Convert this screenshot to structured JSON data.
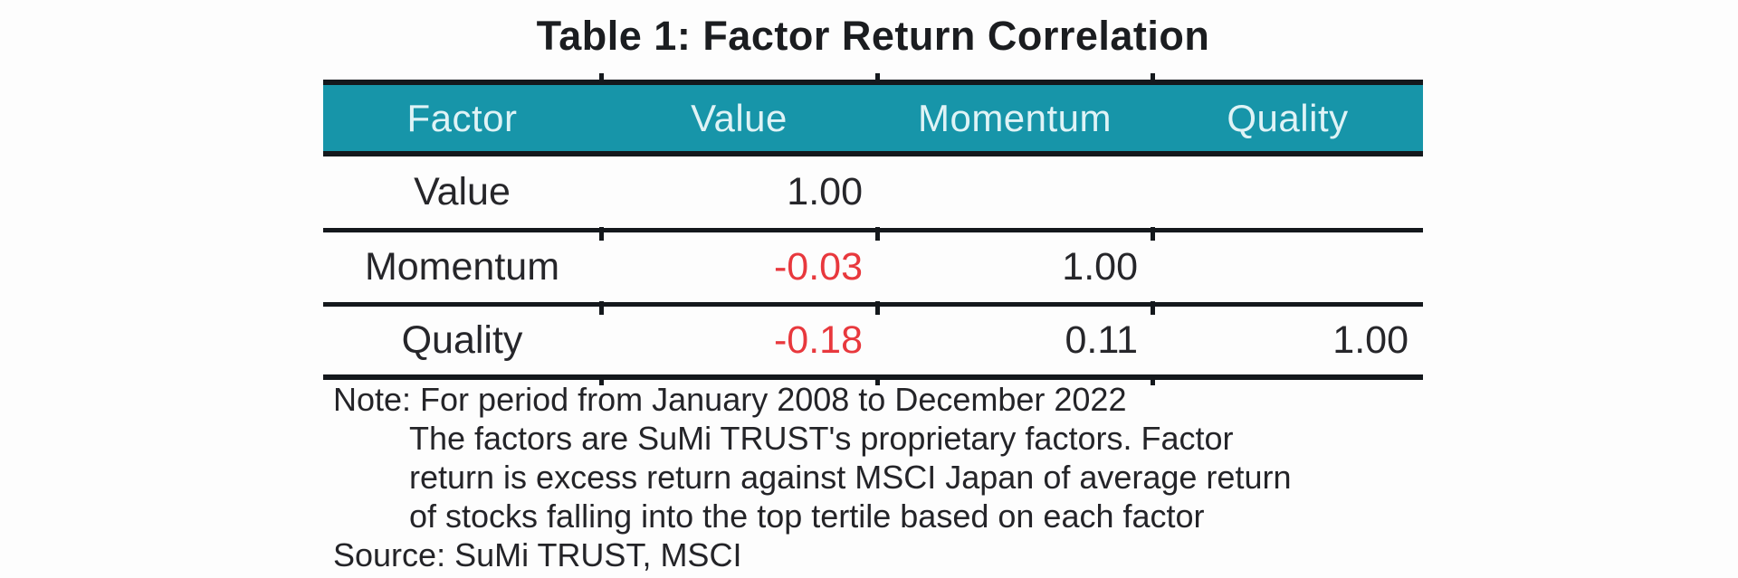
{
  "title": "Table 1: Factor Return Correlation",
  "table": {
    "header": [
      "Factor",
      "Value",
      "Momentum",
      "Quality"
    ],
    "rows": [
      {
        "label": "Value",
        "cells": [
          "1.00",
          "",
          ""
        ]
      },
      {
        "label": "Momentum",
        "cells": [
          "-0.03",
          "1.00",
          ""
        ]
      },
      {
        "label": "Quality",
        "cells": [
          "-0.18",
          "0.11",
          "1.00"
        ]
      }
    ]
  },
  "notes": {
    "lines": [
      "Note: For period from January 2008 to December 2022",
      "The factors are SuMi TRUST's proprietary factors. Factor",
      "return is excess return against MSCI Japan of average return",
      "of stocks falling into the top tertile based on each factor"
    ],
    "source": "Source: SuMi TRUST, MSCI"
  },
  "colors": {
    "header_bg": "#1795a9",
    "header_text": "#dff3f6",
    "rule": "#14181c",
    "text": "#26262a",
    "negative": "#e8383d"
  },
  "chart_data": {
    "type": "table",
    "title": "Table 1: Factor Return Correlation",
    "columns": [
      "Factor",
      "Value",
      "Momentum",
      "Quality"
    ],
    "rows": [
      [
        "Value",
        1.0,
        null,
        null
      ],
      [
        "Momentum",
        -0.03,
        1.0,
        null
      ],
      [
        "Quality",
        -0.18,
        0.11,
        1.0
      ]
    ]
  }
}
